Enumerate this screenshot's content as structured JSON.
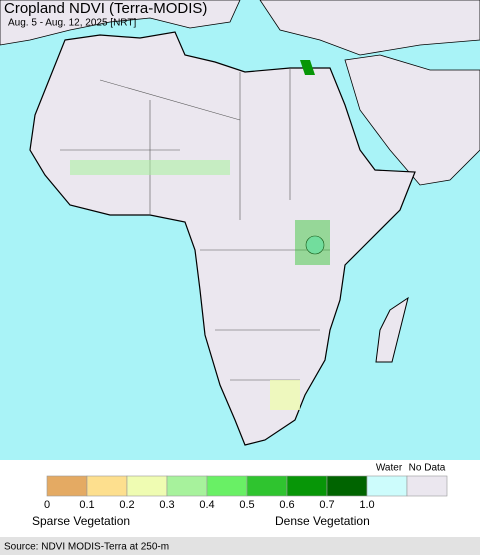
{
  "header": {
    "title": "Cropland NDVI (Terra-MODIS)",
    "subtitle": "Aug. 5 - Aug. 12, 2025 [NRT]"
  },
  "legend": {
    "colors": [
      "#e4aa63",
      "#fddf8e",
      "#effcb2",
      "#a7f29c",
      "#69f065",
      "#2fc42f",
      "#079607",
      "#006400"
    ],
    "ticks": [
      "0",
      "0.1",
      "0.2",
      "0.3",
      "0.4",
      "0.5",
      "0.6",
      "0.7",
      "1.0"
    ],
    "water": {
      "label": "Water",
      "color": "#cdfcfc"
    },
    "no_data": {
      "label": "No Data",
      "color": "#ebe7ef"
    },
    "sparse": "Sparse Vegetation",
    "dense": "Dense Vegetation"
  },
  "source": "Source: NDVI MODIS-Terra at 250-m"
}
